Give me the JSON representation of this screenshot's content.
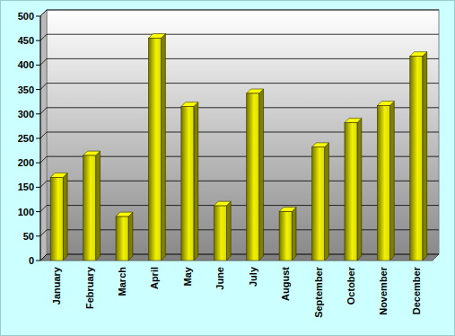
{
  "chart_data": {
    "type": "bar",
    "categories": [
      "January",
      "February",
      "March",
      "April",
      "May",
      "June",
      "July",
      "August",
      "September",
      "October",
      "November",
      "December"
    ],
    "values": [
      170,
      215,
      90,
      455,
      315,
      112,
      342,
      100,
      232,
      282,
      317,
      418
    ],
    "color": "#ffff00",
    "ylim": [
      0,
      500
    ],
    "yticks": [
      0,
      50,
      100,
      150,
      200,
      250,
      300,
      350,
      400,
      450,
      500
    ],
    "grid": true
  }
}
